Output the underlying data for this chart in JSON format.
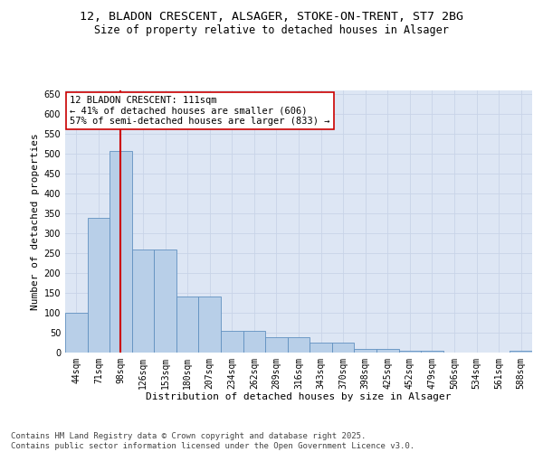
{
  "title1": "12, BLADON CRESCENT, ALSAGER, STOKE-ON-TRENT, ST7 2BG",
  "title2": "Size of property relative to detached houses in Alsager",
  "xlabel": "Distribution of detached houses by size in Alsager",
  "ylabel": "Number of detached properties",
  "categories": [
    "44sqm",
    "71sqm",
    "98sqm",
    "126sqm",
    "153sqm",
    "180sqm",
    "207sqm",
    "234sqm",
    "262sqm",
    "289sqm",
    "316sqm",
    "343sqm",
    "370sqm",
    "398sqm",
    "425sqm",
    "452sqm",
    "479sqm",
    "506sqm",
    "534sqm",
    "561sqm",
    "588sqm"
  ],
  "values": [
    100,
    340,
    507,
    260,
    260,
    140,
    140,
    55,
    55,
    38,
    38,
    25,
    25,
    10,
    10,
    5,
    5,
    1,
    1,
    1,
    5
  ],
  "bar_color": "#b8cfe8",
  "bar_edge_color": "#6090c0",
  "vline_x": 2,
  "vline_color": "#cc0000",
  "annotation_text": "12 BLADON CRESCENT: 111sqm\n← 41% of detached houses are smaller (606)\n57% of semi-detached houses are larger (833) →",
  "annotation_box_color": "#ffffff",
  "annotation_box_edge_color": "#cc0000",
  "ylim": [
    0,
    660
  ],
  "yticks": [
    0,
    50,
    100,
    150,
    200,
    250,
    300,
    350,
    400,
    450,
    500,
    550,
    600,
    650
  ],
  "grid_color": "#c8d4e8",
  "bg_color": "#dde6f4",
  "footnote": "Contains HM Land Registry data © Crown copyright and database right 2025.\nContains public sector information licensed under the Open Government Licence v3.0.",
  "title_fontsize": 9.5,
  "subtitle_fontsize": 8.5,
  "axis_label_fontsize": 8,
  "tick_fontsize": 7,
  "annot_fontsize": 7.5,
  "footnote_fontsize": 6.5
}
